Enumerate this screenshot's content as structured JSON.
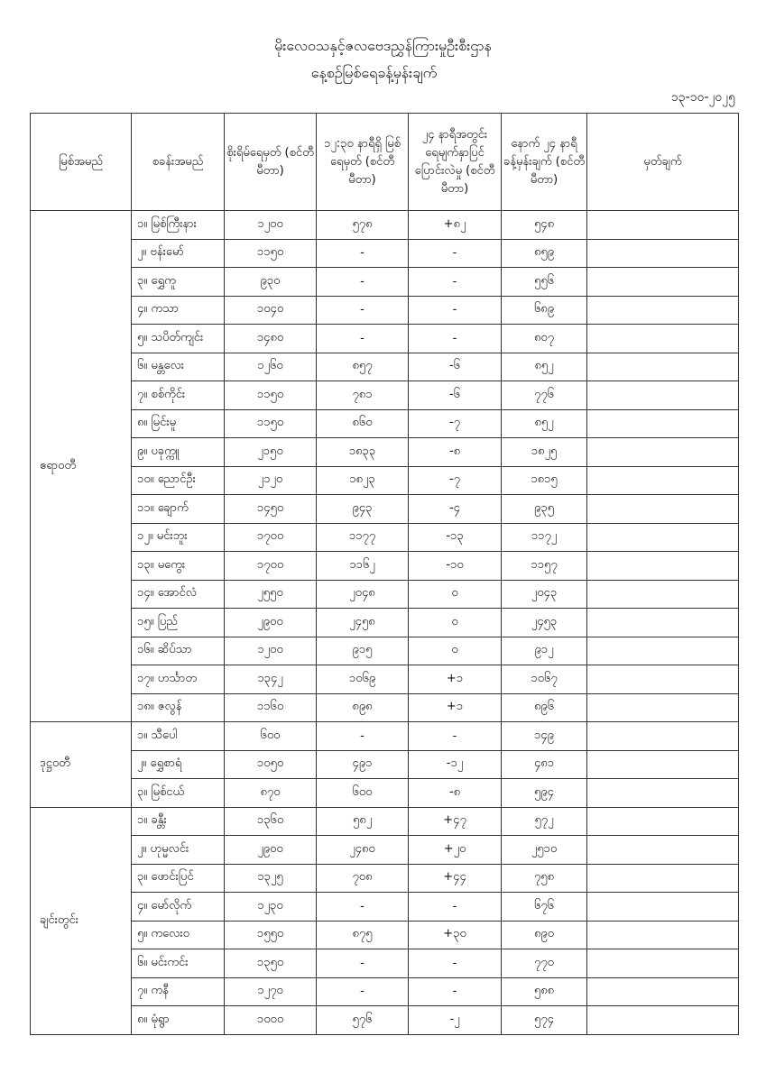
{
  "title_line1": "မိုးလေဝသနှင့်ဇလဗေဒညွှန်ကြားမှုဦးစီးဌာန",
  "title_line2": "နေ့စဉ်မြစ်ရေခန့်မှန်းချက်",
  "date": "၁၃-၁၀-၂၀၂၅",
  "headers": [
    "မြစ်အမည်",
    "စခန်းအမည်",
    "စိုးရိမ်ရေမှတ် (စင်တီမီတာ)",
    "၁၂:၃၀ နာရီရှိ မြစ်ရေမှတ် (စင်တီမီတာ)",
    "၂၄ နာရီအတွင်း ရေမျက်နှာပြင် ပြောင်းလဲမှု (စင်တီမီတာ)",
    "နောက် ၂၄ နာရီ ခန့်မှန်းချက် (စင်တီမီတာ)",
    "မှတ်ချက်"
  ],
  "groups": [
    {
      "river": "ဧရာဝတီ",
      "rows": [
        [
          "၁။ မြစ်ကြီးနား",
          "၁၂၀၀",
          "၅၇၈",
          "+၈၂",
          "၅၄၈",
          ""
        ],
        [
          "၂။ ဗန်းမော်",
          "၁၁၅၀",
          "-",
          "-",
          "၈၅၉",
          ""
        ],
        [
          "၃။ ရွှေကူ",
          "၉၃၀",
          "-",
          "-",
          "၅၅၆",
          ""
        ],
        [
          "၄။ ကသာ",
          "၁၀၄၀",
          "-",
          "-",
          "၆၈၉",
          ""
        ],
        [
          "၅။ သပိတ်ကျင်း",
          "၁၄၈၀",
          "-",
          "-",
          "၈၀၇",
          ""
        ],
        [
          "၆။ မန္တလေး",
          "၁၂၆၀",
          "၈၅၇",
          "-၆",
          "၈၅၂",
          ""
        ],
        [
          "၇။ စစ်ကိုင်း",
          "၁၁၅၀",
          "၇၈၁",
          "-၆",
          "၇၇၆",
          ""
        ],
        [
          "၈။ မြင်းမူ",
          "၁၁၅၀",
          "၈၆၀",
          "-၇",
          "၈၅၂",
          ""
        ],
        [
          "၉။ ပခုက္ကူ",
          "၂၁၅၀",
          "၁၈၃၃",
          "-၈",
          "၁၈၂၅",
          ""
        ],
        [
          "၁၀။ ညောင်ဦး",
          "၂၁၂၀",
          "၁၈၂၃",
          "-၇",
          "၁၈၁၅",
          ""
        ],
        [
          "၁၁။ ချောက်",
          "၁၄၅၀",
          "၉၄၃",
          "-၄",
          "၉၃၅",
          ""
        ],
        [
          "၁၂။ မင်းဘူး",
          "၁၇၀၀",
          "၁၁၇၇",
          "-၁၃",
          "၁၁၇၂",
          ""
        ],
        [
          "၁၃။ မကွေး",
          "၁၇၀၀",
          "၁၁၆၂",
          "-၁၀",
          "၁၁၅၇",
          ""
        ],
        [
          "၁၄။ အောင်လံ",
          "၂၅၅၀",
          "၂၀၄၈",
          "၀",
          "၂၀၄၃",
          ""
        ],
        [
          "၁၅။ ပြည်",
          "၂၉၀၀",
          "၂၄၅၈",
          "၀",
          "၂၄၅၃",
          ""
        ],
        [
          "၁၆။ ဆိပ်သာ",
          "၁၂၀၀",
          "၉၁၅",
          "၀",
          "၉၁၂",
          ""
        ],
        [
          "၁၇။ ဟင်္သာတ",
          "၁၃၄၂",
          "၁၀၆၉",
          "+၁",
          "၁၀၆၇",
          ""
        ],
        [
          "၁၈။ ဇလွန်",
          "၁၁၆၀",
          "၈၉၈",
          "+၁",
          "၈၉၆",
          ""
        ]
      ]
    },
    {
      "river": "ဒုဋ္ဌဝတီ",
      "rows": [
        [
          "၁။ သီပေါ",
          "၆၀၀",
          "-",
          "-",
          "၁၄၉",
          ""
        ],
        [
          "၂။ ရွှေစာရံ",
          "၁၀၅၀",
          "၄၉၁",
          "-၁၂",
          "၄၈၁",
          ""
        ],
        [
          "၃။ မြစ်ငယ်",
          "၈၇၀",
          "၆၀၀",
          "-၈",
          "၅၉၄",
          ""
        ]
      ]
    },
    {
      "river": "ချင်းတွင်း",
      "rows": [
        [
          "၁။ ခန္တီး",
          "၁၃၆၀",
          "၅၈၂",
          "+၄၇",
          "၅၇၂",
          ""
        ],
        [
          "၂။ ဟုမ္မလင်း",
          "၂၉၀၀",
          "၂၄၈၀",
          "+၂၀",
          "၂၅၁၀",
          ""
        ],
        [
          "၃။ ဖောင်းပြင်",
          "၁၃၂၅",
          "၇၀၈",
          "+၄၄",
          "၇၅၈",
          ""
        ],
        [
          "၄။ မော်လိုက်",
          "၁၂၃၀",
          "-",
          "-",
          "၆၇၆",
          ""
        ],
        [
          "၅။ ကလေးဝ",
          "၁၅၅၀",
          "၈၇၅",
          "+၃၀",
          "၈၉၀",
          ""
        ],
        [
          "၆။ မင်းကင်း",
          "၁၃၅၀",
          "-",
          "-",
          "၇၇၀",
          ""
        ],
        [
          "၇။ ကနီ",
          "၁၂၇၀",
          "-",
          "-",
          "၅၈၈",
          ""
        ],
        [
          "၈။ မုံရွာ",
          "၁၀၀၀",
          "၅၇၆",
          "-၂",
          "၅၇၄",
          ""
        ]
      ]
    }
  ]
}
